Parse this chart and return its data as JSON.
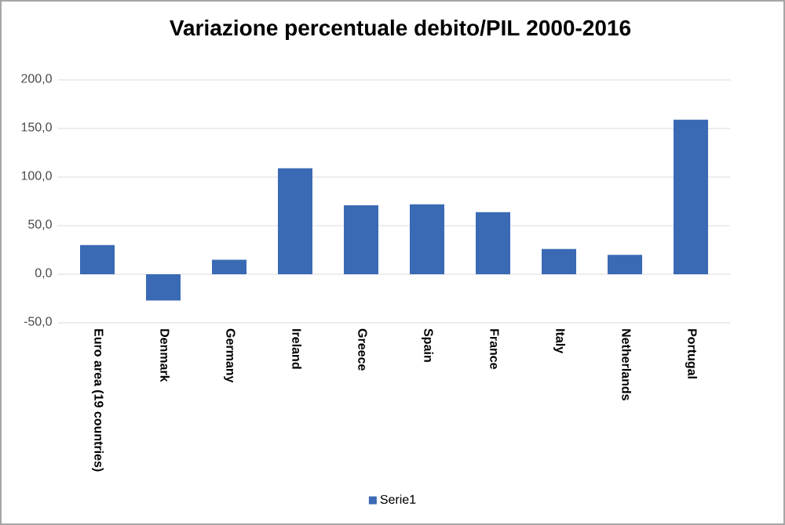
{
  "chart_data": {
    "type": "bar",
    "title": "Variazione percentuale debito/PIL 2000-2016",
    "categories": [
      "Euro area (19 countries)",
      "Denmark",
      "Germany",
      "Ireland",
      "Greece",
      "Spain",
      "France",
      "Italy",
      "Netherlands",
      "Portugal"
    ],
    "series": [
      {
        "name": "Serie1",
        "color": "#3a6ab4",
        "values": [
          30,
          -27,
          15,
          109,
          71,
          72,
          64,
          26,
          20,
          159
        ]
      }
    ],
    "ylim": [
      -50,
      200
    ],
    "yticks": [
      {
        "value": -50,
        "label": "-50,0"
      },
      {
        "value": 0,
        "label": "0,0"
      },
      {
        "value": 50,
        "label": "50,0"
      },
      {
        "value": 100,
        "label": "100,0"
      },
      {
        "value": 150,
        "label": "150,0"
      },
      {
        "value": 200,
        "label": "200,0"
      }
    ],
    "grid": "y",
    "legend": "bottom"
  }
}
